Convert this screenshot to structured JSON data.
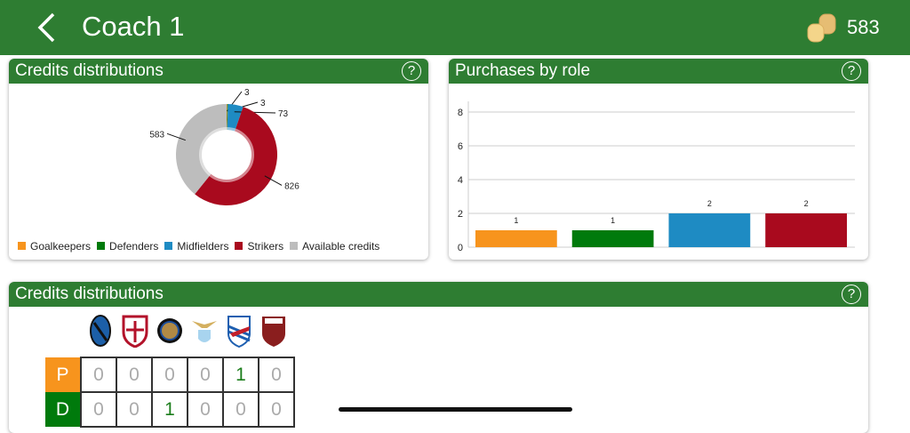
{
  "header": {
    "title": "Coach 1",
    "credits": "583",
    "back_icon": "chevron-left-icon",
    "coins_icon": "coins-icon"
  },
  "colors": {
    "goalkeepers": "#f7941d",
    "defenders": "#007a0c",
    "midfielders": "#1e8bc3",
    "strikers": "#a90a1e",
    "available": "#bdbdbd",
    "header": "#2e7d32"
  },
  "card1": {
    "title": "Credits distributions",
    "help": "?",
    "chart_data": {
      "type": "pie",
      "donut": true,
      "labels": [
        "Goalkeepers",
        "Defenders",
        "Midfielders",
        "Strikers",
        "Available credits"
      ],
      "values": [
        3,
        3,
        73,
        826,
        583
      ],
      "data_labels": [
        "3",
        "3",
        "73",
        "826",
        "583"
      ],
      "legend": "bottom"
    }
  },
  "card2": {
    "title": "Purchases by role",
    "help": "?",
    "chart_data": {
      "type": "bar",
      "categories": [
        "Goalkeepers",
        "Defenders",
        "Midfielders",
        "Strikers"
      ],
      "values": [
        1,
        1,
        2,
        2
      ],
      "ylim": [
        0,
        8
      ],
      "yticks": [
        "0",
        "2",
        "4",
        "6",
        "8"
      ],
      "grid": true
    }
  },
  "card3": {
    "title": "Credits distributions",
    "help": "?",
    "teams": [
      "Atalanta",
      "Cagliari",
      "Inter",
      "Lazio",
      "Sampdoria",
      "Torino"
    ],
    "rows": [
      {
        "role": "P",
        "values": [
          "0",
          "0",
          "0",
          "0",
          "1",
          "0"
        ]
      },
      {
        "role": "D",
        "values": [
          "0",
          "0",
          "1",
          "0",
          "0",
          "0"
        ]
      }
    ]
  }
}
